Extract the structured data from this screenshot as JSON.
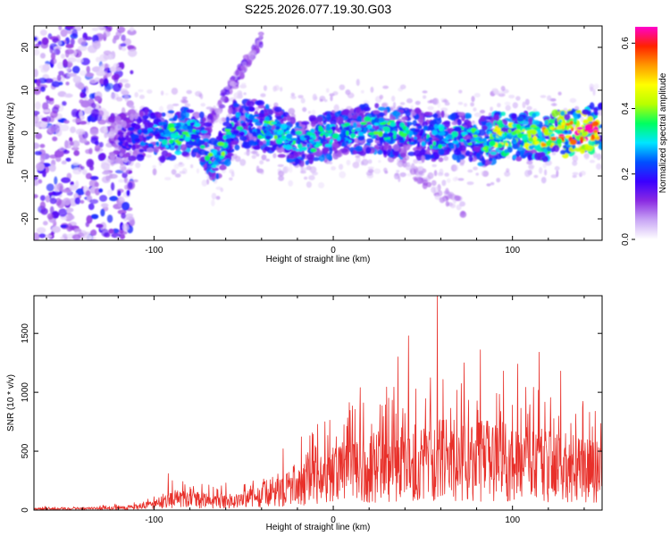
{
  "title": "S225.2026.077.19.30.G03",
  "chart_data": [
    {
      "type": "heatmap",
      "name": "spectrogram",
      "xlabel": "Height of straight line (km)",
      "ylabel": "Frequency (Hz)",
      "xlim": [
        -167,
        150
      ],
      "ylim": [
        -25,
        25
      ],
      "xticks": [
        -100,
        0,
        100
      ],
      "yticks": [
        -20,
        -10,
        0,
        10,
        20
      ],
      "colorbar": {
        "label": "Normalized spectral amplitude",
        "range": [
          0,
          0.65
        ],
        "ticks": [
          0.0,
          0.2,
          0.4,
          0.6
        ],
        "colors": [
          "#ffffff",
          "#c9a6f5",
          "#8a2be2",
          "#3a00ff",
          "#0050ff",
          "#00e6ff",
          "#00ff60",
          "#b8ff00",
          "#ffff00",
          "#ff9900",
          "#ff2200",
          "#ff00cc"
        ]
      },
      "ridge": [
        {
          "x": -115,
          "y": -1,
          "a": 0.18
        },
        {
          "x": -105,
          "y": 0,
          "a": 0.25
        },
        {
          "x": -95,
          "y": -1,
          "a": 0.32
        },
        {
          "x": -85,
          "y": 0,
          "a": 0.38
        },
        {
          "x": -75,
          "y": 0,
          "a": 0.3
        },
        {
          "x": -65,
          "y": -7,
          "a": 0.38
        },
        {
          "x": -55,
          "y": 2,
          "a": 0.3
        },
        {
          "x": -45,
          "y": 2,
          "a": 0.3
        },
        {
          "x": -35,
          "y": 1,
          "a": 0.36
        },
        {
          "x": -25,
          "y": -1,
          "a": 0.34
        },
        {
          "x": -15,
          "y": -2,
          "a": 0.3
        },
        {
          "x": -5,
          "y": -1,
          "a": 0.33
        },
        {
          "x": 5,
          "y": 0,
          "a": 0.3
        },
        {
          "x": 15,
          "y": 1,
          "a": 0.32
        },
        {
          "x": 25,
          "y": 1,
          "a": 0.35
        },
        {
          "x": 35,
          "y": 0,
          "a": 0.34
        },
        {
          "x": 45,
          "y": 0,
          "a": 0.3
        },
        {
          "x": 55,
          "y": -1,
          "a": 0.32
        },
        {
          "x": 65,
          "y": -1,
          "a": 0.3
        },
        {
          "x": 75,
          "y": -1,
          "a": 0.33
        },
        {
          "x": 85,
          "y": -2,
          "a": 0.38
        },
        {
          "x": 95,
          "y": 0,
          "a": 0.45
        },
        {
          "x": 105,
          "y": -1,
          "a": 0.4
        },
        {
          "x": 115,
          "y": -1,
          "a": 0.45
        },
        {
          "x": 125,
          "y": 0,
          "a": 0.55
        },
        {
          "x": 135,
          "y": 0,
          "a": 0.6
        },
        {
          "x": 145,
          "y": 1,
          "a": 0.62
        }
      ]
    },
    {
      "type": "line",
      "name": "snr",
      "xlabel": "Height of straight line (km)",
      "ylabel": "SNR (10 * v/v)",
      "xlim": [
        -167,
        150
      ],
      "ylim": [
        0,
        1820
      ],
      "xticks": [
        -100,
        0,
        100
      ],
      "yticks": [
        0,
        500,
        1000,
        1500
      ],
      "color": "#e8302a",
      "envelope": [
        {
          "x": -167,
          "y": 20
        },
        {
          "x": -130,
          "y": 25
        },
        {
          "x": -110,
          "y": 45
        },
        {
          "x": -100,
          "y": 80
        },
        {
          "x": -95,
          "y": 130
        },
        {
          "x": -90,
          "y": 170
        },
        {
          "x": -80,
          "y": 150
        },
        {
          "x": -70,
          "y": 140
        },
        {
          "x": -60,
          "y": 130
        },
        {
          "x": -50,
          "y": 150
        },
        {
          "x": -40,
          "y": 220
        },
        {
          "x": -30,
          "y": 300
        },
        {
          "x": -20,
          "y": 380
        },
        {
          "x": -10,
          "y": 450
        },
        {
          "x": 0,
          "y": 520
        },
        {
          "x": 10,
          "y": 580
        },
        {
          "x": 20,
          "y": 620
        },
        {
          "x": 30,
          "y": 660
        },
        {
          "x": 40,
          "y": 700
        },
        {
          "x": 50,
          "y": 720
        },
        {
          "x": 60,
          "y": 740
        },
        {
          "x": 70,
          "y": 740
        },
        {
          "x": 80,
          "y": 740
        },
        {
          "x": 90,
          "y": 720
        },
        {
          "x": 100,
          "y": 700
        },
        {
          "x": 110,
          "y": 680
        },
        {
          "x": 120,
          "y": 660
        },
        {
          "x": 130,
          "y": 620
        },
        {
          "x": 140,
          "y": 580
        },
        {
          "x": 150,
          "y": 540
        }
      ],
      "peaks": [
        {
          "x": -92,
          "y": 310
        },
        {
          "x": -60,
          "y": 230
        },
        {
          "x": -28,
          "y": 520
        },
        {
          "x": 15,
          "y": 1040
        },
        {
          "x": 36,
          "y": 1300
        },
        {
          "x": 42,
          "y": 1480
        },
        {
          "x": 58,
          "y": 1820
        },
        {
          "x": 73,
          "y": 1250
        },
        {
          "x": 82,
          "y": 1360
        },
        {
          "x": 95,
          "y": 1180
        },
        {
          "x": 103,
          "y": 1240
        },
        {
          "x": 115,
          "y": 1340
        },
        {
          "x": 127,
          "y": 1180
        },
        {
          "x": 143,
          "y": 830
        }
      ]
    }
  ]
}
